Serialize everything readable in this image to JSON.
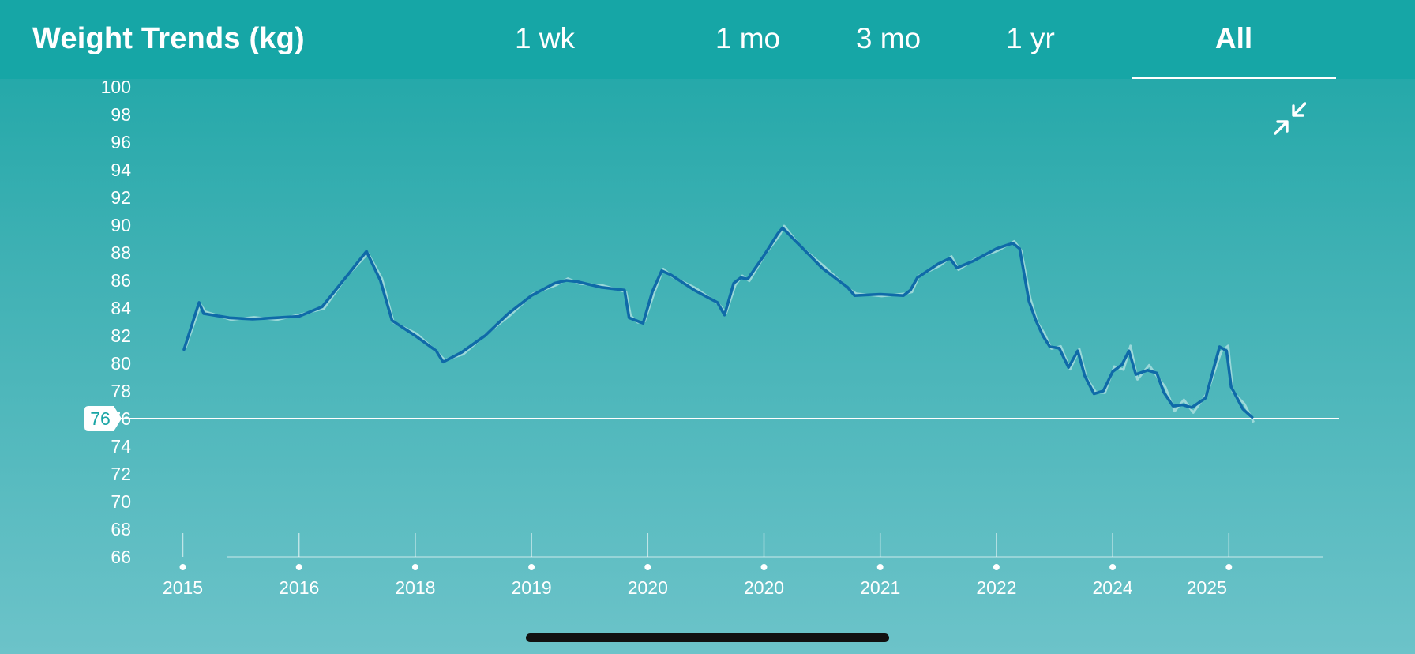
{
  "header": {
    "title": "Weight Trends (kg)",
    "tabs": [
      "1 wk",
      "1 mo",
      "3 mo",
      "1 yr",
      "All"
    ],
    "active_tab": "All"
  },
  "icons": {
    "collapse": "collapse-arrows-icon"
  },
  "current_value_badge": "76",
  "chart_data": {
    "type": "line",
    "title": "Weight Trends (kg)",
    "y_ticks": [
      "100",
      "98",
      "96",
      "94",
      "92",
      "90",
      "88",
      "86",
      "84",
      "82",
      "80",
      "78",
      "76",
      "74",
      "72",
      "70",
      "68",
      "66"
    ],
    "ylim": [
      66,
      100
    ],
    "x_ticks": [
      "2015",
      "2016",
      "2018",
      "2019",
      "2020",
      "2020",
      "2021",
      "2022",
      "2024",
      "2025"
    ],
    "reference_line": 76,
    "colors": {
      "trend": "#0f6aa8",
      "raw": "#a9dede",
      "reference": "#ffffff"
    },
    "series": [
      {
        "points": [
          [
            0.05,
            81.0
          ],
          [
            0.7,
            84.4
          ],
          [
            0.9,
            83.6
          ],
          [
            2.0,
            83.3
          ],
          [
            3.0,
            83.2
          ],
          [
            4.0,
            83.3
          ],
          [
            5.0,
            83.4
          ],
          [
            6.0,
            84.1
          ],
          [
            7.0,
            86.2
          ],
          [
            7.9,
            88.1
          ],
          [
            8.5,
            86.0
          ],
          [
            9.0,
            83.1
          ],
          [
            10.0,
            82.0
          ],
          [
            10.9,
            80.9
          ],
          [
            11.2,
            80.1
          ],
          [
            12.0,
            80.8
          ],
          [
            13.0,
            82.0
          ],
          [
            14.0,
            83.6
          ],
          [
            15.0,
            84.9
          ],
          [
            16.0,
            85.8
          ],
          [
            16.5,
            86.0
          ],
          [
            17.0,
            85.9
          ],
          [
            18.0,
            85.5
          ],
          [
            19.0,
            85.3
          ],
          [
            19.2,
            83.3
          ],
          [
            19.5,
            83.1
          ],
          [
            19.8,
            82.9
          ],
          [
            20.2,
            85.2
          ],
          [
            20.6,
            86.7
          ],
          [
            21.0,
            86.4
          ],
          [
            22.0,
            85.3
          ],
          [
            23.0,
            84.4
          ],
          [
            23.3,
            83.5
          ],
          [
            23.7,
            85.8
          ],
          [
            24.0,
            86.2
          ],
          [
            24.3,
            86.1
          ],
          [
            25.0,
            87.8
          ],
          [
            25.6,
            89.4
          ],
          [
            25.8,
            89.8
          ],
          [
            26.5,
            88.6
          ],
          [
            27.5,
            86.9
          ],
          [
            28.6,
            85.5
          ],
          [
            28.9,
            84.9
          ],
          [
            30.0,
            85.0
          ],
          [
            31.0,
            84.9
          ],
          [
            31.3,
            85.3
          ],
          [
            31.6,
            86.2
          ],
          [
            32.5,
            87.2
          ],
          [
            33.0,
            87.6
          ],
          [
            33.3,
            86.9
          ],
          [
            34.0,
            87.4
          ],
          [
            35.0,
            88.3
          ],
          [
            35.7,
            88.7
          ],
          [
            36.0,
            88.3
          ],
          [
            36.4,
            84.5
          ],
          [
            36.7,
            83.1
          ],
          [
            37.0,
            82.0
          ],
          [
            37.3,
            81.2
          ],
          [
            37.7,
            81.1
          ],
          [
            38.1,
            79.7
          ],
          [
            38.5,
            80.9
          ],
          [
            38.8,
            79.1
          ],
          [
            39.2,
            77.8
          ],
          [
            39.6,
            78.0
          ],
          [
            40.0,
            79.4
          ],
          [
            40.4,
            79.9
          ],
          [
            40.7,
            80.9
          ],
          [
            41.0,
            79.2
          ],
          [
            41.5,
            79.5
          ],
          [
            41.9,
            79.3
          ],
          [
            42.2,
            77.9
          ],
          [
            42.6,
            76.9
          ],
          [
            43.0,
            77.0
          ],
          [
            43.4,
            76.8
          ],
          [
            44.0,
            77.5
          ],
          [
            44.6,
            81.2
          ],
          [
            44.9,
            80.9
          ],
          [
            45.1,
            78.3
          ],
          [
            45.6,
            76.7
          ],
          [
            46.0,
            76.1
          ]
        ]
      }
    ]
  }
}
